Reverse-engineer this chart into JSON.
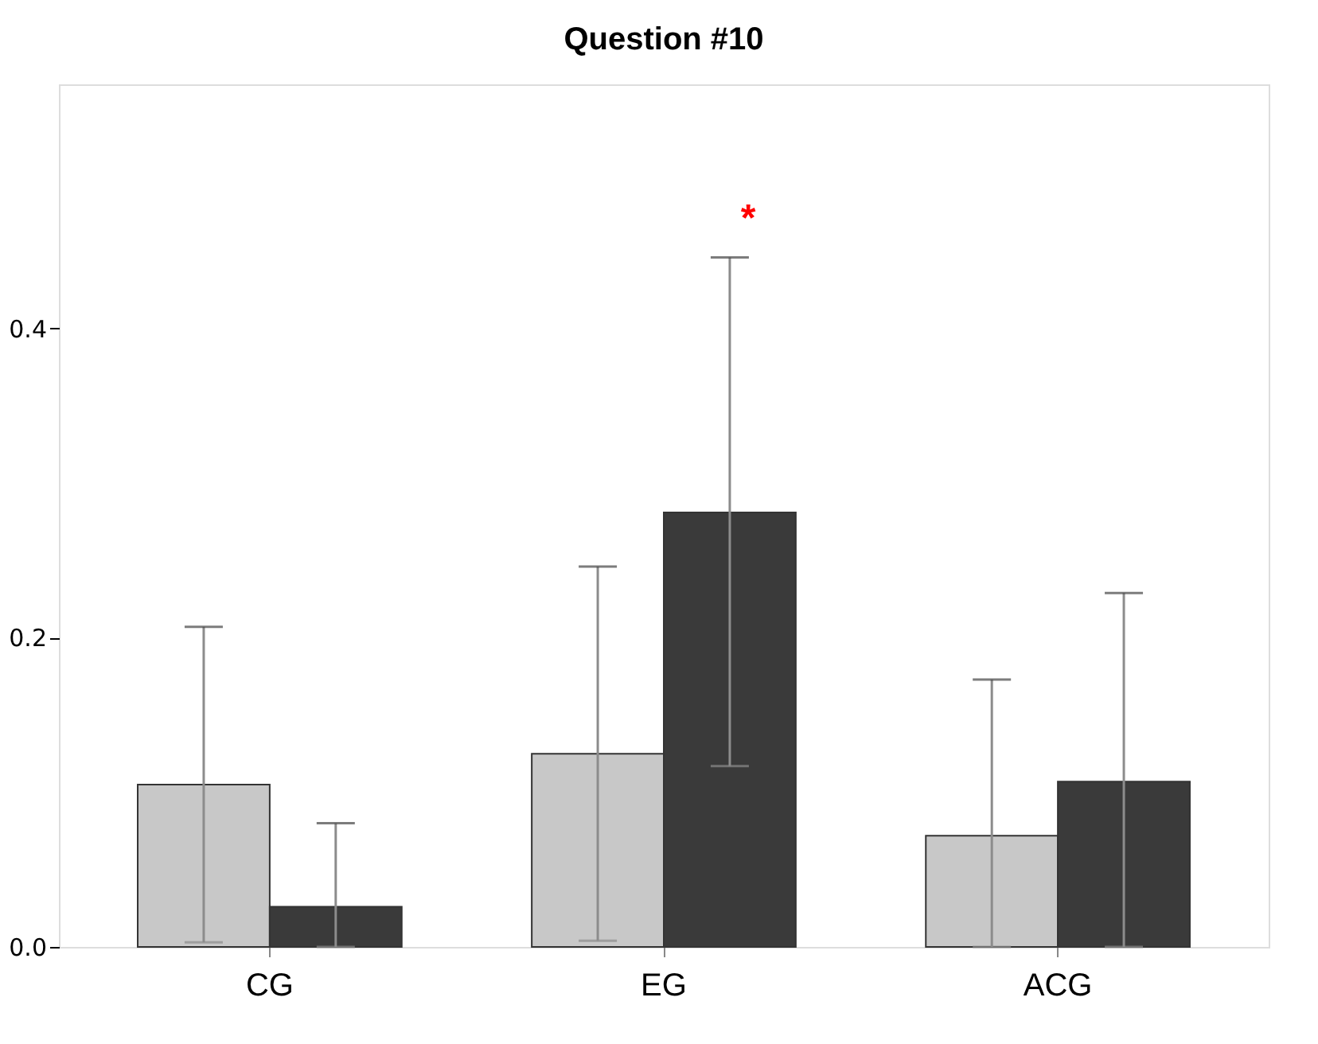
{
  "chart_data": {
    "type": "bar",
    "title": "Question #10",
    "categories": [
      "CG",
      "EG",
      "ACG"
    ],
    "series": [
      {
        "color": "#c8c8c8",
        "values": [
          0.105,
          0.125,
          0.072
        ],
        "errors": [
          [
            0.003,
            0.207
          ],
          [
            0.004,
            0.246
          ],
          [
            0.0,
            0.173
          ]
        ]
      },
      {
        "color": "#3a3a3a",
        "values": [
          0.026,
          0.281,
          0.107
        ],
        "errors": [
          [
            0.0,
            0.08
          ],
          [
            0.117,
            0.446
          ],
          [
            0.0,
            0.229
          ]
        ]
      }
    ],
    "ylim": [
      0,
      0.558
    ],
    "yticks": [
      {
        "value": 0,
        "label": "0.0"
      },
      {
        "value": 0.2,
        "label": "0.2"
      },
      {
        "value": 0.4,
        "label": "0.4"
      }
    ],
    "annotations": [
      "*"
    ],
    "grid": false,
    "legend": false
  }
}
